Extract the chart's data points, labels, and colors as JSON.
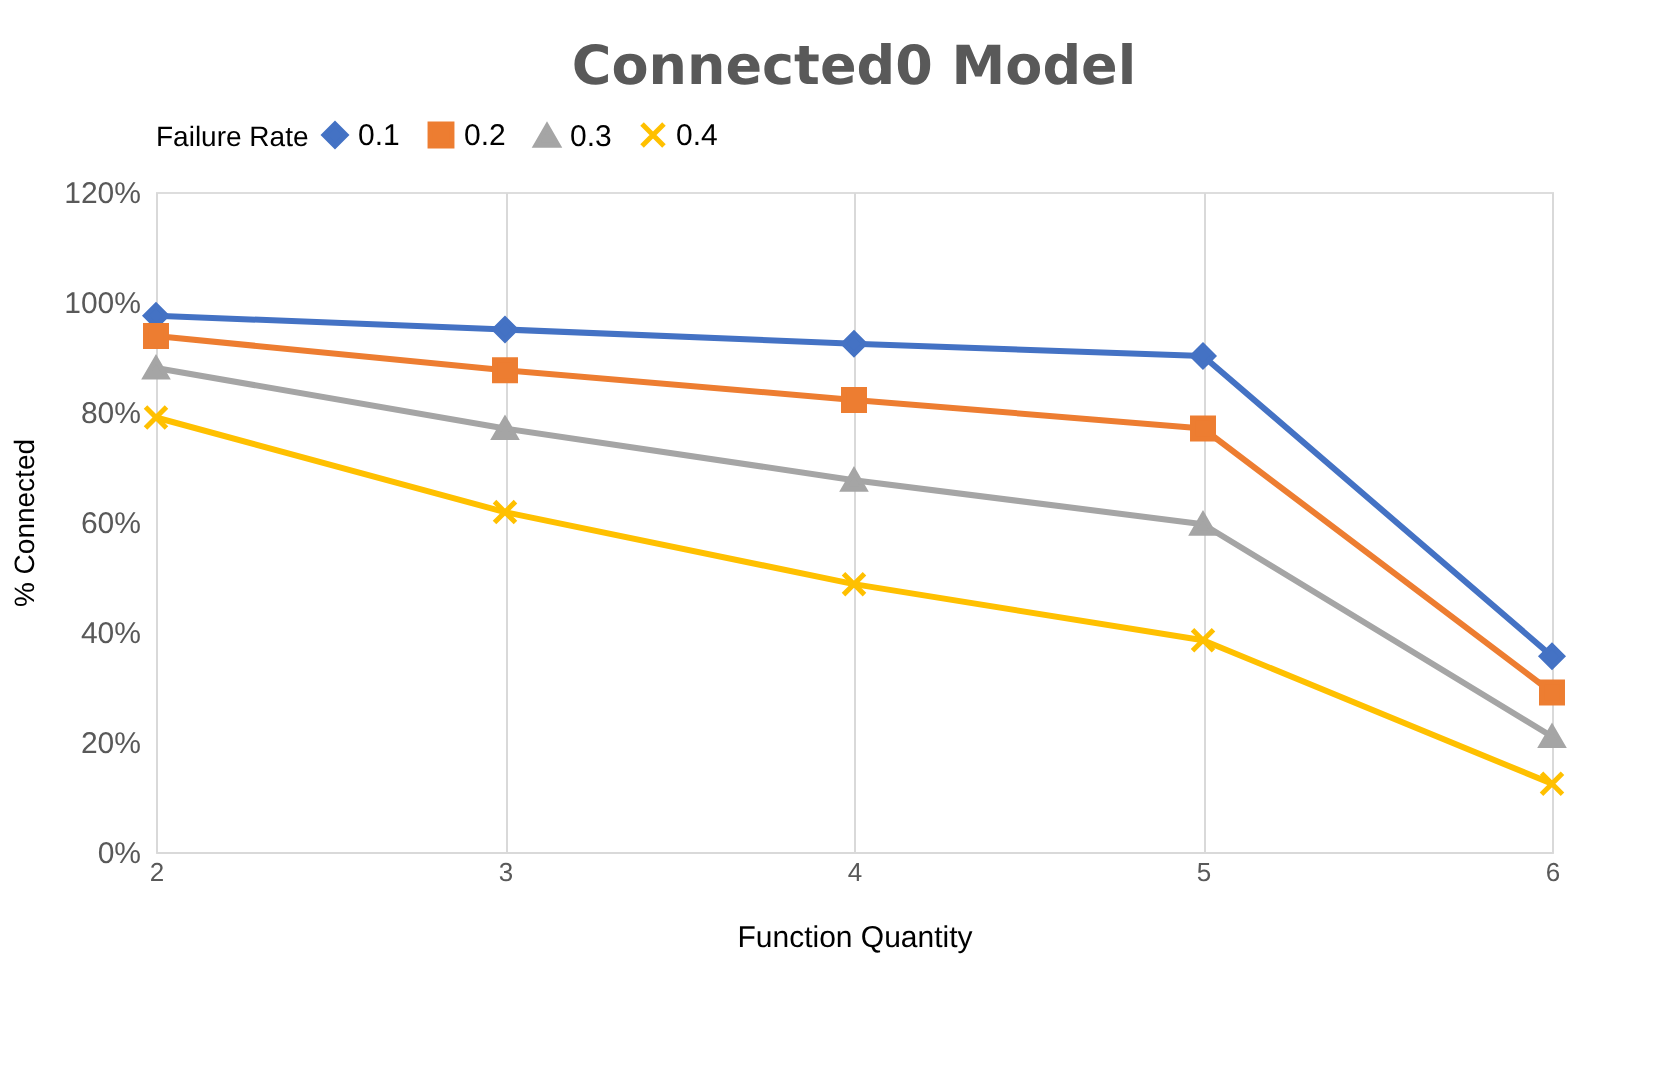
{
  "chart_data": {
    "type": "line",
    "title": "Connected0 Model",
    "xlabel": "Function Quantity",
    "ylabel": "% Connected",
    "legend_title": "Failure Rate",
    "x": [
      2,
      3,
      4,
      5,
      6
    ],
    "xlim": [
      2,
      6
    ],
    "xticks": [
      2,
      3,
      4,
      5,
      6
    ],
    "ylim": [
      0,
      120
    ],
    "yticks": [
      {
        "value": 0,
        "label": "0%"
      },
      {
        "value": 20,
        "label": "20%"
      },
      {
        "value": 40,
        "label": "40%"
      },
      {
        "value": 60,
        "label": "60%"
      },
      {
        "value": 80,
        "label": "80%"
      },
      {
        "value": 100,
        "label": "100%"
      },
      {
        "value": 120,
        "label": "120%"
      }
    ],
    "grid": "x",
    "legend": "top",
    "line_style": "solid",
    "series": [
      {
        "name": "0.1",
        "color": "#4472c4",
        "marker": "diamond",
        "values": [
          97.5,
          95,
          92.4,
          90.2,
          35.6
        ]
      },
      {
        "name": "0.2",
        "color": "#ed7d31",
        "marker": "square",
        "values": [
          93.8,
          87.6,
          82.2,
          77,
          29
        ]
      },
      {
        "name": "0.3",
        "color": "#a5a5a5",
        "marker": "triangle",
        "values": [
          88,
          77,
          67.6,
          59.6,
          21
        ]
      },
      {
        "name": "0.4",
        "color": "#ffc000",
        "marker": "cross",
        "values": [
          79,
          61.8,
          48.7,
          38.5,
          12.4
        ]
      }
    ]
  }
}
